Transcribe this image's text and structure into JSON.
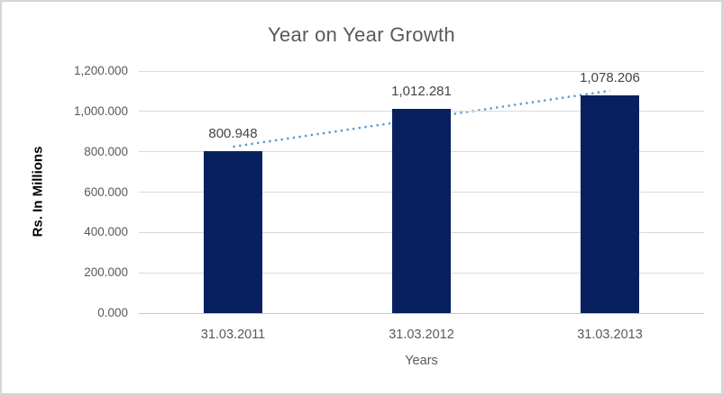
{
  "chart_data": {
    "type": "bar",
    "title": "Year on Year Growth",
    "xlabel": "Years",
    "ylabel": "Rs. In Millions",
    "categories": [
      "31.03.2011",
      "31.03.2012",
      "31.03.2013"
    ],
    "values": [
      800.948,
      1012.281,
      1078.206
    ],
    "data_labels": [
      "800.948",
      "1,012.281",
      "1,078.206"
    ],
    "ylim": [
      0,
      1200
    ],
    "yticks": [
      {
        "value": 1200,
        "label": "1,200.000"
      },
      {
        "value": 1000,
        "label": "1,000.000"
      },
      {
        "value": 800,
        "label": "800.000"
      },
      {
        "value": 600,
        "label": "600.000"
      },
      {
        "value": 400,
        "label": "400.000"
      },
      {
        "value": 200,
        "label": "200.000"
      },
      {
        "value": 0,
        "label": "0.000"
      }
    ],
    "grid": true,
    "legend_position": "none",
    "trendline": {
      "type": "linear",
      "style": "dotted",
      "color": "#5b9bd5"
    },
    "colors": {
      "bar": "#08215e",
      "gridline": "#d9d9d9",
      "axis_line": "#c6c6c6",
      "tick_text": "#595959",
      "title_text": "#595959",
      "data_label_text": "#444444",
      "y_axis_title_text": "#000000"
    }
  }
}
